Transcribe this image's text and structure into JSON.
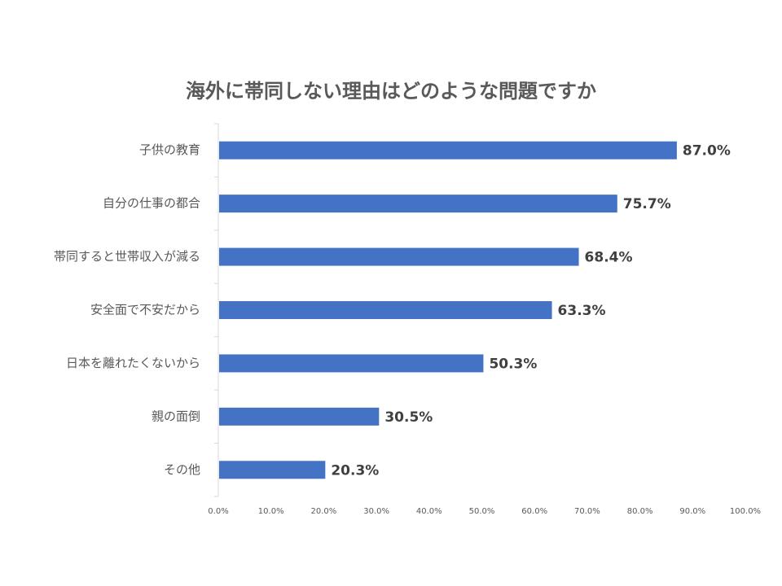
{
  "chart_data": {
    "type": "bar",
    "orientation": "horizontal",
    "title": "海外に帯同しない理由はどのような問題ですか",
    "categories": [
      "子供の教育",
      "自分の仕事の都合",
      "帯同すると世帯収入が減る",
      "安全面で不安だから",
      "日本を離れたくないから",
      "親の面倒",
      "その他"
    ],
    "values": [
      87.0,
      75.7,
      68.4,
      63.3,
      50.3,
      30.5,
      20.3
    ],
    "value_labels": [
      "87.0%",
      "75.7%",
      "68.4%",
      "63.3%",
      "50.3%",
      "30.5%",
      "20.3%"
    ],
    "xticks": [
      "0.0%",
      "10.0%",
      "20.0%",
      "30.0%",
      "40.0%",
      "50.0%",
      "60.0%",
      "70.0%",
      "80.0%",
      "90.0%",
      "100.0%"
    ],
    "xlim": [
      0,
      100
    ],
    "xlabel": "",
    "ylabel": "",
    "grid": false,
    "bar_color": "#4472C4"
  }
}
